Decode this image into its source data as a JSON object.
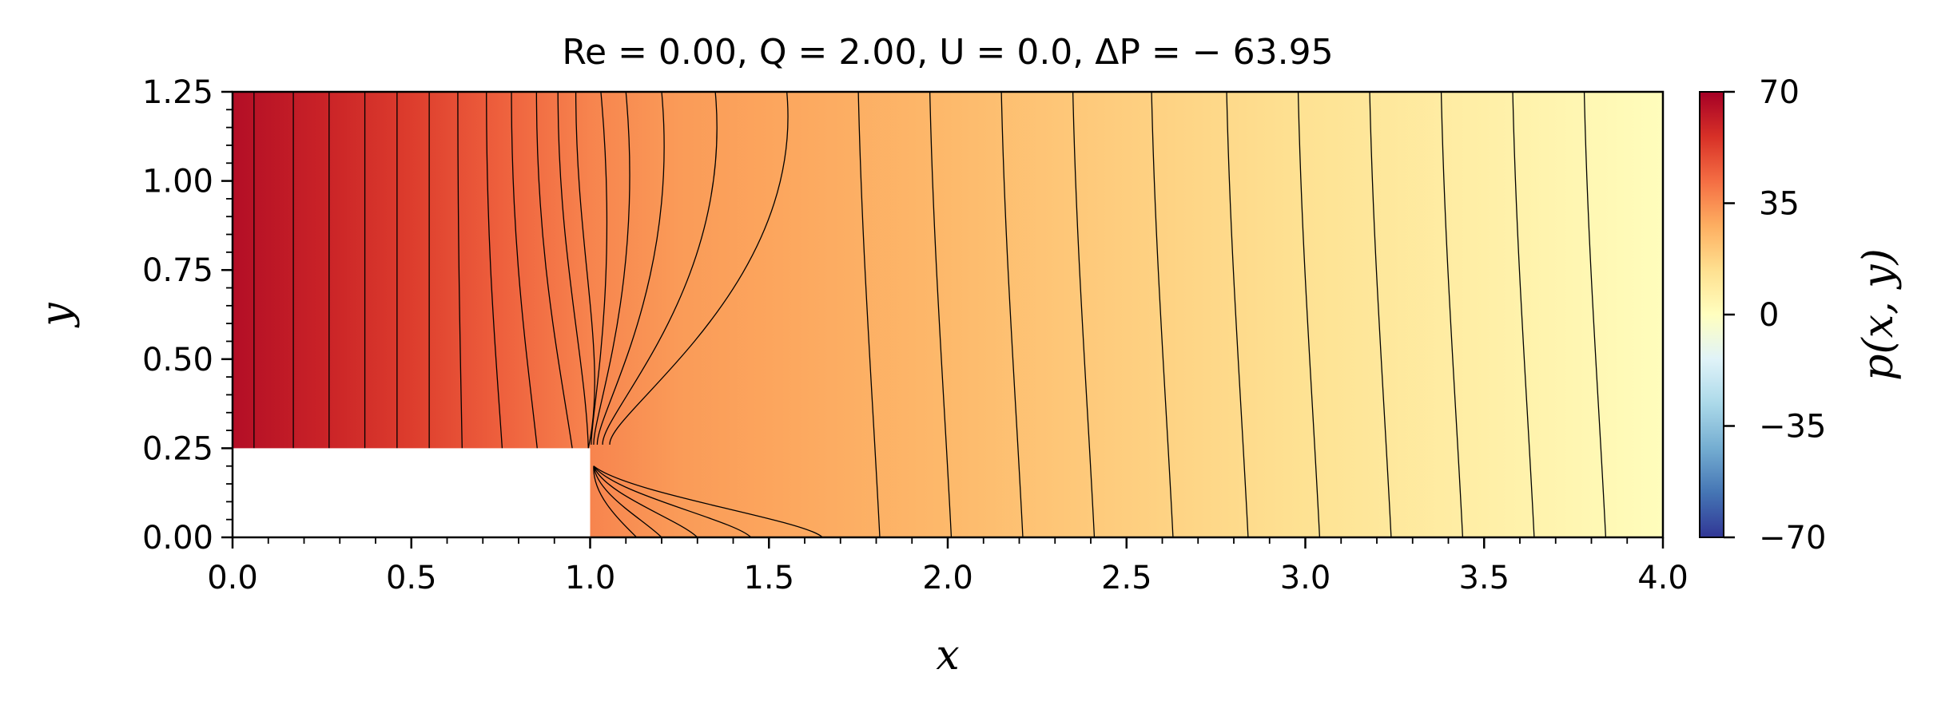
{
  "chart_data": {
    "type": "heatmap",
    "title": "Re = 0.00, Q = 2.00, U = 0.0, ΔP = − 63.95",
    "xlabel": "x",
    "ylabel": "y",
    "xlim": [
      0.0,
      4.0
    ],
    "ylim": [
      0.0,
      1.25
    ],
    "x_ticks": [
      "0.0",
      "0.5",
      "1.0",
      "1.5",
      "2.0",
      "2.5",
      "3.0",
      "3.5",
      "4.0"
    ],
    "y_ticks": [
      "0.00",
      "0.25",
      "0.50",
      "0.75",
      "1.00",
      "1.25"
    ],
    "step": {
      "x": [
        0.0,
        1.0
      ],
      "y": [
        0.0,
        0.25
      ]
    },
    "colorbar": {
      "label": "p(x, y)",
      "range": [
        -70,
        70
      ],
      "ticks": [
        "70",
        "35",
        "0",
        "−35",
        "−70"
      ],
      "colormap": "RdYlBu_r"
    },
    "pressure_profile": {
      "x": [
        0.0,
        0.25,
        0.5,
        0.75,
        1.0,
        1.25,
        1.5,
        2.0,
        2.5,
        3.0,
        3.5,
        4.0
      ],
      "p": [
        66,
        60,
        53,
        45,
        37,
        32,
        30,
        25,
        19,
        13,
        7,
        1
      ]
    },
    "contour_lines_x": [
      0.06,
      0.17,
      0.27,
      0.37,
      0.46,
      0.55,
      0.63,
      0.71,
      0.78,
      0.85,
      0.91,
      0.96,
      1.03,
      1.1,
      1.2,
      1.35,
      1.55,
      1.75,
      1.95,
      2.15,
      2.35,
      2.57,
      2.78,
      2.98,
      3.18,
      3.38,
      3.58,
      3.78
    ],
    "grid": false
  }
}
